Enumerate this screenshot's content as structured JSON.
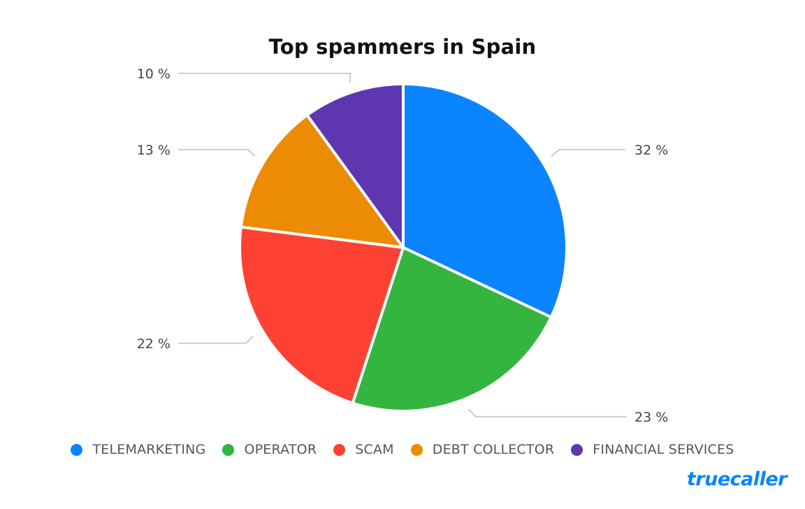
{
  "title": "Top spammers in Spain",
  "brand": "truecaller",
  "chart_data": {
    "type": "pie",
    "title": "Top spammers in Spain",
    "categories": [
      "TELEMARKETING",
      "OPERATOR",
      "SCAM",
      "DEBT COLLECTOR",
      "FINANCIAL SERVICES"
    ],
    "values": [
      32,
      23,
      22,
      13,
      10
    ],
    "unit": "%",
    "colors": [
      "#0a84ff",
      "#33b540",
      "#ff4133",
      "#ec8c04",
      "#5e37b0"
    ],
    "labels": [
      "32 %",
      "23 %",
      "22 %",
      "13 %",
      "10 %"
    ],
    "start_angle": "12 o'clock",
    "direction": "clockwise",
    "legend_position": "bottom"
  },
  "legend": [
    {
      "label": "TELEMARKETING",
      "color": "#0a84ff"
    },
    {
      "label": "OPERATOR",
      "color": "#33b540"
    },
    {
      "label": "SCAM",
      "color": "#ff4133"
    },
    {
      "label": "DEBT COLLECTOR",
      "color": "#ec8c04"
    },
    {
      "label": "FINANCIAL SERVICES",
      "color": "#5e37b0"
    }
  ]
}
